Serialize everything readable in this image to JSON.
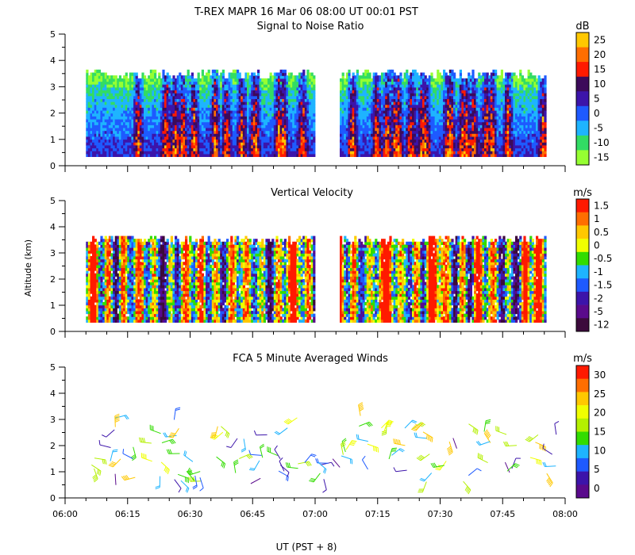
{
  "figure": {
    "title": "T-REX   MAPR 16 Mar 06   08:00 UT   00:01   PST",
    "ylabel": "Altitude (km)",
    "xlabel": "UT  (PST + 8)"
  },
  "chart_data": [
    {
      "type": "heatmap",
      "title": "Signal to Noise Ratio",
      "ylabel": "Altitude (km)",
      "xlabel": "UT  (PST + 8)",
      "x_range_minutes": [
        0,
        120
      ],
      "x_ticks": [
        "06:00",
        "06:15",
        "06:30",
        "06:45",
        "07:00",
        "07:15",
        "07:30",
        "07:45",
        "08:00"
      ],
      "y_range_km": [
        0,
        5
      ],
      "y_ticks": [
        "0",
        "1",
        "2",
        "3",
        "4",
        "5"
      ],
      "data_extent_km": [
        0.35,
        3.6
      ],
      "data_gap_minutes": [
        59.5,
        65.5
      ],
      "colorbar": {
        "unit": "dB",
        "labels": [
          "25",
          "20",
          "15",
          "10",
          "5",
          "0",
          "-5",
          "-10",
          "-15"
        ],
        "colors": [
          "#FFC800",
          "#FF6E00",
          "#FF1A00",
          "#3C0A5A",
          "#3C14AA",
          "#1E5AFF",
          "#1EB4FF",
          "#32DC64",
          "#96FF32"
        ]
      }
    },
    {
      "type": "heatmap",
      "title": "Vertical Velocity",
      "ylabel": "Altitude (km)",
      "xlabel": "UT  (PST + 8)",
      "x_range_minutes": [
        0,
        120
      ],
      "x_ticks": [
        "06:00",
        "06:15",
        "06:30",
        "06:45",
        "07:00",
        "07:15",
        "07:30",
        "07:45",
        "08:00"
      ],
      "y_range_km": [
        0,
        5
      ],
      "y_ticks": [
        "0",
        "1",
        "2",
        "3",
        "4",
        "5"
      ],
      "data_extent_km": [
        0.35,
        3.6
      ],
      "data_gap_minutes": [
        59.5,
        65.5
      ],
      "colorbar": {
        "unit": "m/s",
        "labels": [
          "1.5",
          "1",
          "0.5",
          "0",
          "-0.5",
          "-1",
          "-1.5",
          "-2",
          "-5",
          "-12"
        ],
        "colors": [
          "#FF1A00",
          "#FF6E00",
          "#FFC800",
          "#F0FF00",
          "#32DC00",
          "#1EB4FF",
          "#1E5AFF",
          "#3C14AA",
          "#5A0A8C",
          "#3C0A3C"
        ]
      }
    },
    {
      "type": "scatter",
      "title": "FCA 5 Minute Averaged Winds",
      "ylabel": "Altitude (km)",
      "xlabel": "UT  (PST + 8)",
      "x_range_minutes": [
        0,
        120
      ],
      "x_ticks": [
        "06:00",
        "06:15",
        "06:30",
        "06:45",
        "07:00",
        "07:15",
        "07:30",
        "07:45",
        "08:00"
      ],
      "y_range_km": [
        0,
        5
      ],
      "y_ticks": [
        "0",
        "1",
        "2",
        "3",
        "4",
        "5"
      ],
      "barb_columns_minutes": [
        7,
        12,
        17,
        22,
        27,
        32,
        37,
        42,
        47,
        52,
        57,
        62,
        67,
        72,
        77,
        82,
        87,
        92,
        97,
        102,
        107,
        112,
        117
      ],
      "barb_speed_range_ms": [
        0,
        30
      ],
      "colorbar": {
        "unit": "m/s",
        "labels": [
          "30",
          "25",
          "20",
          "15",
          "10",
          "5",
          "0"
        ],
        "colors": [
          "#FF1A00",
          "#FF6E00",
          "#FFC800",
          "#F0FF00",
          "#B4F000",
          "#32DC00",
          "#1EB4FF",
          "#1E5AFF",
          "#3C14AA",
          "#5A0A8C"
        ]
      }
    }
  ]
}
